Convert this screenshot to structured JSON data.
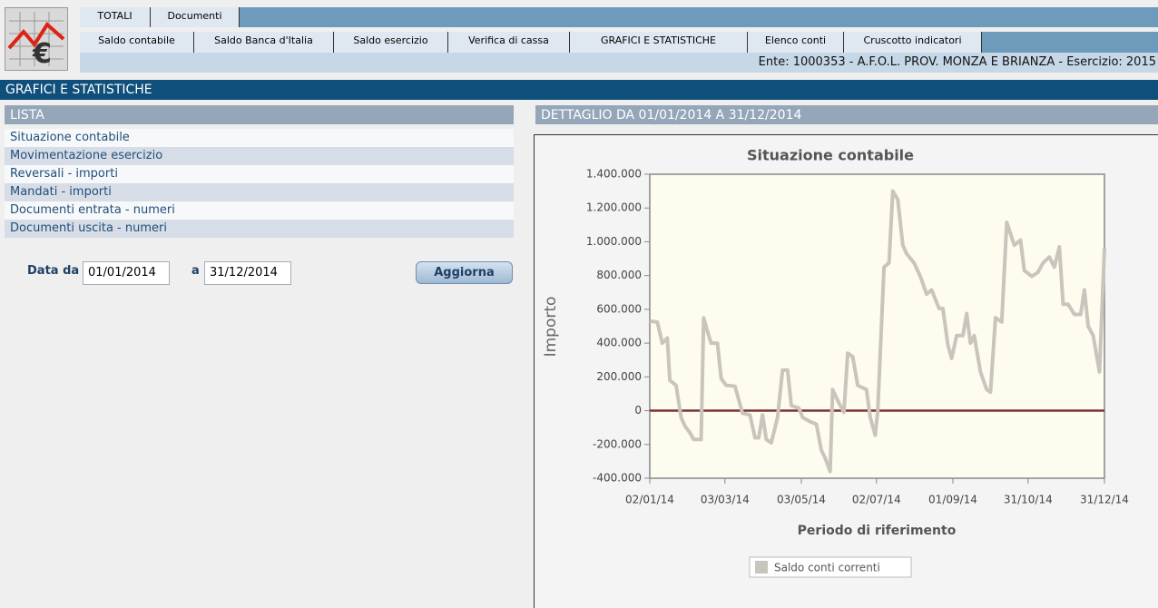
{
  "nav": {
    "tabs": [
      "TOTALI",
      "Documenti"
    ],
    "subtabs": [
      "Saldo contabile",
      "Saldo Banca d'Italia",
      "Saldo esercizio",
      "Verifica di cassa",
      "GRAFICI E STATISTICHE",
      "Elenco conti",
      "Cruscotto indicatori"
    ],
    "ente": "Ente: 1000353 - A.F.O.L. PROV. MONZA E BRIANZA - Esercizio: 2015"
  },
  "section_title": "GRAFICI E STATISTICHE",
  "list": {
    "title": "LISTA",
    "items": [
      "Situazione contabile",
      "Movimentazione esercizio",
      "Reversali - importi",
      "Mandati - importi",
      "Documenti entrata - numeri",
      "Documenti uscita - numeri"
    ]
  },
  "form": {
    "from_label": "Data da",
    "from_value": "01/01/2014",
    "to_label": "a",
    "to_value": "31/12/2014",
    "button": "Aggiorna"
  },
  "detail_title": "DETTAGLIO DA 01/01/2014 A 31/12/2014",
  "chart_data": {
    "type": "line",
    "title": "Situazione contabile",
    "x_label": "Periodo di riferimento",
    "y_label": "Importo",
    "x": [
      "2014-01-02",
      "2014-01-08",
      "2014-01-12",
      "2014-01-16",
      "2014-01-18",
      "2014-01-23",
      "2014-01-27",
      "2014-01-30",
      "2014-02-03",
      "2014-02-06",
      "2014-02-12",
      "2014-02-14",
      "2014-02-17",
      "2014-02-20",
      "2014-02-25",
      "2014-02-28",
      "2014-03-04",
      "2014-03-11",
      "2014-03-17",
      "2014-03-23",
      "2014-03-27",
      "2014-03-30",
      "2014-04-02",
      "2014-04-05",
      "2014-04-09",
      "2014-04-14",
      "2014-04-18",
      "2014-04-22",
      "2014-04-25",
      "2014-05-01",
      "2014-05-04",
      "2014-05-10",
      "2014-05-15",
      "2014-05-19",
      "2014-05-22",
      "2014-05-26",
      "2014-05-28",
      "2014-06-02",
      "2014-06-06",
      "2014-06-09",
      "2014-06-13",
      "2014-06-17",
      "2014-06-24",
      "2014-06-27",
      "2014-07-01",
      "2014-07-03",
      "2014-07-08",
      "2014-07-12",
      "2014-07-15",
      "2014-07-19",
      "2014-07-23",
      "2014-07-26",
      "2014-08-01",
      "2014-08-06",
      "2014-08-11",
      "2014-08-15",
      "2014-08-21",
      "2014-08-24",
      "2014-08-28",
      "2014-08-31",
      "2014-09-04",
      "2014-09-09",
      "2014-09-12",
      "2014-09-15",
      "2014-09-18",
      "2014-09-23",
      "2014-09-28",
      "2014-10-01",
      "2014-10-05",
      "2014-10-10",
      "2014-10-14",
      "2014-10-20",
      "2014-10-25",
      "2014-10-28",
      "2014-11-03",
      "2014-11-08",
      "2014-11-12",
      "2014-11-17",
      "2014-11-21",
      "2014-11-25",
      "2014-11-28",
      "2014-12-02",
      "2014-12-07",
      "2014-12-12",
      "2014-12-15",
      "2014-12-18",
      "2014-12-22",
      "2014-12-27",
      "2014-12-31"
    ],
    "series": [
      {
        "name": "Saldo conti correnti",
        "color": "#c9c5bd",
        "values": [
          530000,
          525000,
          400000,
          430000,
          180000,
          150000,
          -40000,
          -90000,
          -130000,
          -170000,
          -170000,
          550000,
          470000,
          400000,
          400000,
          190000,
          150000,
          145000,
          -15000,
          -25000,
          -160000,
          -160000,
          -25000,
          -170000,
          -190000,
          -40000,
          240000,
          240000,
          30000,
          15000,
          -40000,
          -65000,
          -80000,
          -235000,
          -280000,
          -360000,
          125000,
          45000,
          -10000,
          340000,
          320000,
          150000,
          125000,
          -40000,
          -145000,
          0,
          850000,
          875000,
          1300000,
          1250000,
          980000,
          930000,
          875000,
          795000,
          690000,
          715000,
          605000,
          605000,
          390000,
          310000,
          445000,
          445000,
          575000,
          400000,
          445000,
          230000,
          125000,
          110000,
          550000,
          525000,
          1115000,
          980000,
          1010000,
          830000,
          795000,
          820000,
          875000,
          910000,
          850000,
          970000,
          630000,
          630000,
          570000,
          570000,
          715000,
          500000,
          445000,
          230000,
          960000
        ]
      }
    ],
    "xlim": [
      "2014-01-02",
      "2014-12-31"
    ],
    "xticks": [
      {
        "value": "2014-01-02",
        "label": "02/01/14"
      },
      {
        "value": "2014-03-03",
        "label": "03/03/14"
      },
      {
        "value": "2014-05-03",
        "label": "03/05/14"
      },
      {
        "value": "2014-07-02",
        "label": "02/07/14"
      },
      {
        "value": "2014-09-01",
        "label": "01/09/14"
      },
      {
        "value": "2014-10-31",
        "label": "31/10/14"
      },
      {
        "value": "2014-12-31",
        "label": "31/12/14"
      }
    ],
    "ylim": [
      -400000,
      1400000
    ],
    "yticks": [
      {
        "value": -400000,
        "label": "-400.000"
      },
      {
        "value": -200000,
        "label": "-200.000"
      },
      0,
      {
        "value": 200000,
        "label": "200.000"
      },
      {
        "value": 400000,
        "label": "400.000"
      },
      {
        "value": 600000,
        "label": "600.000"
      },
      {
        "value": 800000,
        "label": "800.000"
      },
      {
        "value": 1000000,
        "label": "1.000.000"
      },
      {
        "value": 1200000,
        "label": "1.200.000"
      },
      {
        "value": 1400000,
        "label": "1.400.000"
      }
    ],
    "grid": false,
    "legend": "bottom"
  }
}
